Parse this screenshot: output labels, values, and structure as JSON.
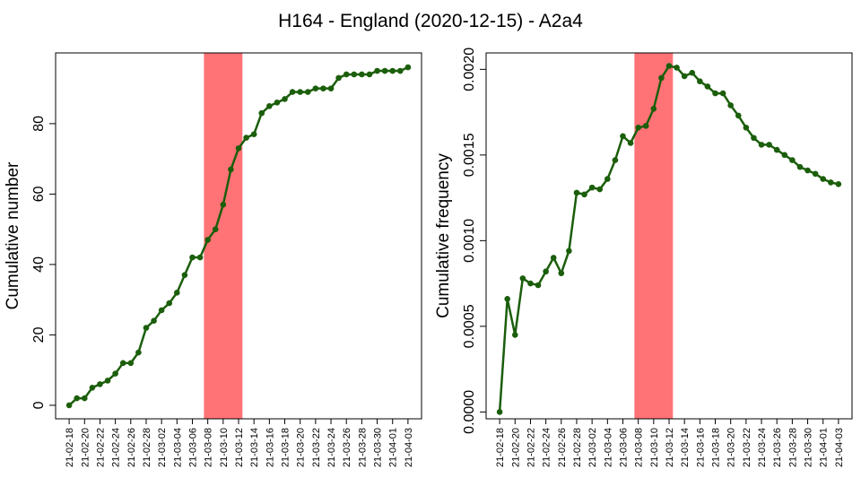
{
  "title": "H164 - England (2020-12-15) - A2a4",
  "chart_data": [
    {
      "type": "line",
      "ylabel": "Cumulative number",
      "categories": [
        "21-02-18",
        null,
        "21-02-20",
        null,
        "21-02-22",
        null,
        "21-02-24",
        null,
        "21-02-26",
        null,
        "21-02-28",
        null,
        "21-03-02",
        null,
        "21-03-04",
        null,
        "21-03-06",
        null,
        "21-03-08",
        null,
        "21-03-10",
        null,
        "21-03-12",
        null,
        "21-03-14",
        null,
        "21-03-16",
        null,
        "21-03-18",
        null,
        "21-03-20",
        null,
        "21-03-22",
        null,
        "21-03-24",
        null,
        "21-03-26",
        null,
        "21-03-28",
        null,
        "21-03-30",
        null,
        "21-04-01",
        null,
        "21-04-03"
      ],
      "values": [
        0,
        2,
        2,
        5,
        6,
        7,
        9,
        12,
        12,
        15,
        22,
        24,
        27,
        29,
        32,
        37,
        42,
        42,
        47,
        50,
        57,
        67,
        73,
        76,
        77,
        83,
        85,
        86,
        87,
        89,
        89,
        89,
        90,
        90,
        90,
        93,
        94,
        94,
        94,
        94,
        95,
        95,
        95,
        95,
        96
      ],
      "color": "#1b5e0b",
      "highlight": [
        "21-03-08",
        "21-03-12"
      ],
      "highlight_color": "#ff7377",
      "ylim": [
        -3.84,
        100.1
      ],
      "yticks": [
        0,
        20,
        40,
        60,
        80
      ]
    },
    {
      "type": "line",
      "ylabel": "Cumulative frequency",
      "categories": [
        "21-02-18",
        null,
        "21-02-20",
        null,
        "21-02-22",
        null,
        "21-02-24",
        null,
        "21-02-26",
        null,
        "21-02-28",
        null,
        "21-03-02",
        null,
        "21-03-04",
        null,
        "21-03-06",
        null,
        "21-03-08",
        null,
        "21-03-10",
        null,
        "21-03-12",
        null,
        "21-03-14",
        null,
        "21-03-16",
        null,
        "21-03-18",
        null,
        "21-03-20",
        null,
        "21-03-22",
        null,
        "21-03-24",
        null,
        "21-03-26",
        null,
        "21-03-28",
        null,
        "21-03-30",
        null,
        "21-04-01",
        null,
        "21-04-03"
      ],
      "values": [
        0,
        0.00066,
        0.00045,
        0.00078,
        0.00075,
        0.00074,
        0.00082,
        0.0009,
        0.00081,
        0.00094,
        0.00128,
        0.00127,
        0.00131,
        0.0013,
        0.00136,
        0.00147,
        0.00161,
        0.00157,
        0.00166,
        0.00167,
        0.00177,
        0.00195,
        0.00202,
        0.00201,
        0.00196,
        0.00198,
        0.00193,
        0.0019,
        0.00186,
        0.00186,
        0.00179,
        0.00173,
        0.00166,
        0.0016,
        0.00156,
        0.00156,
        0.00153,
        0.0015,
        0.00147,
        0.00143,
        0.00141,
        0.00139,
        0.00136,
        0.00134,
        0.00133
      ],
      "color": "#1b5e0b",
      "highlight": [
        "21-03-08",
        "21-03-12"
      ],
      "highlight_color": "#ff7377",
      "ylim": [
        -4e-05,
        0.002096
      ],
      "yticks": [
        {
          "value": 0,
          "label": "0.0000"
        },
        {
          "value": 0.0005,
          "label": "0.0005"
        },
        {
          "value": 0.001,
          "label": "0.0010"
        },
        {
          "value": 0.0015,
          "label": "0.0015"
        },
        {
          "value": 0.002,
          "label": "0.0020"
        }
      ]
    }
  ]
}
